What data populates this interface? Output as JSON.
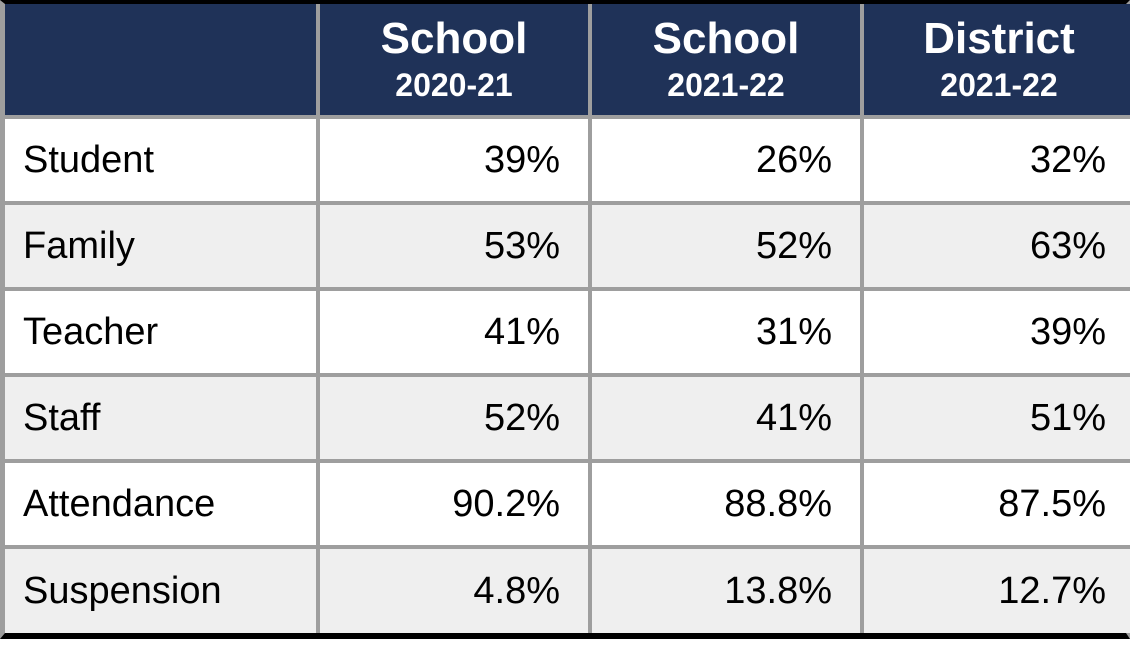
{
  "style": {
    "header_bg": "#1f3258",
    "header_fg": "#ffffff",
    "row_alt_bg": "#efefef",
    "border_color": "#9e9e9e",
    "header_main_fontsize": 44,
    "header_sub_fontsize": 32,
    "cell_fontsize": 38
  },
  "columns": [
    {
      "main": "",
      "sub": ""
    },
    {
      "main": "School",
      "sub": "2020-21"
    },
    {
      "main": "School",
      "sub": "2021-22"
    },
    {
      "main": "District",
      "sub": "2021-22"
    }
  ],
  "rows": [
    {
      "label": "Student",
      "v0": "39%",
      "v1": "26%",
      "v2": "32%"
    },
    {
      "label": "Family",
      "v0": "53%",
      "v1": "52%",
      "v2": "63%"
    },
    {
      "label": "Teacher",
      "v0": "41%",
      "v1": "31%",
      "v2": "39%"
    },
    {
      "label": "Staff",
      "v0": "52%",
      "v1": "41%",
      "v2": "51%"
    },
    {
      "label": "Attendance",
      "v0": "90.2%",
      "v1": "88.8%",
      "v2": "87.5%"
    },
    {
      "label": "Suspension",
      "v0": "4.8%",
      "v1": "13.8%",
      "v2": "12.7%"
    }
  ]
}
